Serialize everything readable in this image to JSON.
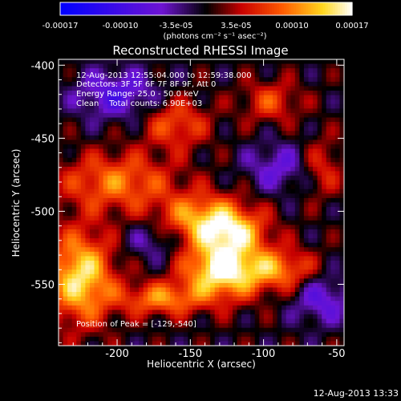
{
  "chart_data": {
    "type": "heatmap",
    "title": "Reconstructed RHESSI Image",
    "xlabel": "Heliocentric X (arcsec)",
    "ylabel": "Heliocentric Y (arcsec)",
    "xlim": [
      -240,
      -45
    ],
    "ylim": [
      -592,
      -396
    ],
    "xticks": [
      -200,
      -150,
      -100,
      -50
    ],
    "yticks": [
      -400,
      -450,
      -500,
      -550
    ],
    "colorbar": {
      "colormap": "blue-purple-red-orange-yellow-white",
      "range": [
        -0.00017,
        0.00017
      ],
      "tick_values": [
        -0.00017,
        -0.0001,
        -3.5e-05,
        3.5e-05,
        0.0001,
        0.00017
      ],
      "tick_labels": [
        "-0.00017",
        "-0.00010",
        "-3.5e-05",
        "3.5e-05",
        "0.00010",
        "0.00017"
      ],
      "units_label": "(photons cm⁻² s⁻¹ asec⁻²)"
    },
    "annotations": {
      "time_range": "12-Aug-2013 12:55:04.000 to 12:59:38.000",
      "detectors": "Detectors: 3F 5F 6F 7F 8F 9F, Att 0",
      "energy_range": "Energy Range: 25.0 - 50.0 keV",
      "clean_counts": "Clean    Total counts: 6.90E+03",
      "peak_position": "Position of Peak = [-129,-540]"
    },
    "peak": {
      "x": -129,
      "y": -540
    },
    "blobs": [
      {
        "x": -200,
        "y": -480,
        "sx": 28,
        "sy": 14,
        "v": 9.5e-05
      },
      {
        "x": -140,
        "y": -505,
        "sx": 22,
        "sy": 12,
        "v": 0.00012
      },
      {
        "x": -120,
        "y": -515,
        "sx": 16,
        "sy": 10,
        "v": 9e-05
      },
      {
        "x": -129,
        "y": -540,
        "sx": 18,
        "sy": 14,
        "v": 0.00017
      },
      {
        "x": -225,
        "y": -545,
        "sx": 16,
        "sy": 22,
        "v": 0.00015
      },
      {
        "x": -170,
        "y": -560,
        "sx": 20,
        "sy": 8,
        "v": 0.0001
      },
      {
        "x": -90,
        "y": -540,
        "sx": 18,
        "sy": 10,
        "v": 0.0001
      },
      {
        "x": -160,
        "y": -440,
        "sx": 16,
        "sy": 12,
        "v": 8e-05
      },
      {
        "x": -95,
        "y": -425,
        "sx": 14,
        "sy": 10,
        "v": 7e-05
      },
      {
        "x": -60,
        "y": -470,
        "sx": 10,
        "sy": 14,
        "v": 6e-05
      },
      {
        "x": -200,
        "y": -420,
        "sx": 20,
        "sy": 12,
        "v": -8e-05
      },
      {
        "x": -90,
        "y": -470,
        "sx": 16,
        "sy": 12,
        "v": -6e-05
      },
      {
        "x": -60,
        "y": -560,
        "sx": 14,
        "sy": 12,
        "v": -7e-05
      },
      {
        "x": -175,
        "y": -520,
        "sx": 14,
        "sy": 10,
        "v": -5e-05
      }
    ]
  },
  "footer": {
    "timestamp": "12-Aug-2013 13:33"
  }
}
